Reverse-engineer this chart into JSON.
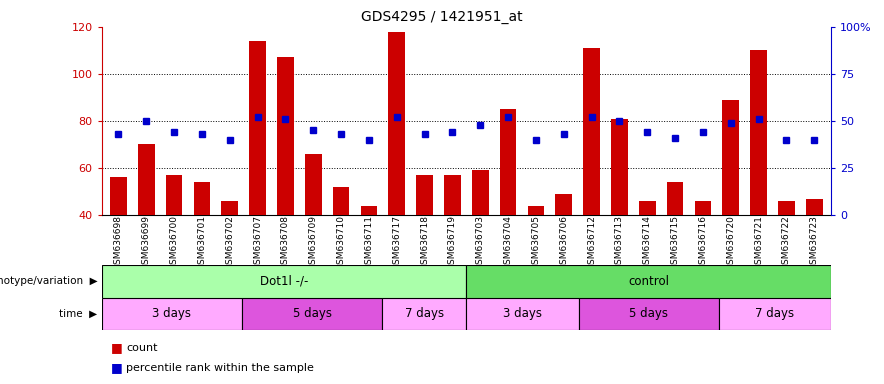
{
  "title": "GDS4295 / 1421951_at",
  "samples": [
    "GSM636698",
    "GSM636699",
    "GSM636700",
    "GSM636701",
    "GSM636702",
    "GSM636707",
    "GSM636708",
    "GSM636709",
    "GSM636710",
    "GSM636711",
    "GSM636717",
    "GSM636718",
    "GSM636719",
    "GSM636703",
    "GSM636704",
    "GSM636705",
    "GSM636706",
    "GSM636712",
    "GSM636713",
    "GSM636714",
    "GSM636715",
    "GSM636716",
    "GSM636720",
    "GSM636721",
    "GSM636722",
    "GSM636723"
  ],
  "counts": [
    56,
    70,
    57,
    54,
    46,
    114,
    107,
    66,
    52,
    44,
    118,
    57,
    57,
    59,
    85,
    44,
    49,
    111,
    81,
    46,
    54,
    46,
    89,
    110,
    46,
    47
  ],
  "percentiles": [
    43,
    50,
    44,
    43,
    40,
    52,
    51,
    45,
    43,
    40,
    52,
    43,
    44,
    48,
    52,
    40,
    43,
    52,
    50,
    44,
    41,
    44,
    49,
    51,
    40,
    40
  ],
  "ylim_left": [
    40,
    120
  ],
  "ylim_right": [
    0,
    100
  ],
  "yticks_left": [
    40,
    60,
    80,
    100,
    120
  ],
  "yticks_right": [
    0,
    25,
    50,
    75,
    100
  ],
  "ytick_labels_right": [
    "0",
    "25",
    "50",
    "75",
    "100%"
  ],
  "bar_color": "#cc0000",
  "dot_color": "#0000cc",
  "left_axis_color": "#cc0000",
  "right_axis_color": "#0000cc",
  "genotype_groups": [
    {
      "label": "Dot1l -/-",
      "start": 0,
      "end": 13,
      "color": "#aaffaa"
    },
    {
      "label": "control",
      "start": 13,
      "end": 26,
      "color": "#66dd66"
    }
  ],
  "time_groups": [
    {
      "label": "3 days",
      "start": 0,
      "end": 5,
      "color": "#ffaaff"
    },
    {
      "label": "5 days",
      "start": 5,
      "end": 10,
      "color": "#dd44dd"
    },
    {
      "label": "7 days",
      "start": 10,
      "end": 13,
      "color": "#ffaaff"
    },
    {
      "label": "3 days",
      "start": 13,
      "end": 17,
      "color": "#ffaaff"
    },
    {
      "label": "5 days",
      "start": 17,
      "end": 22,
      "color": "#dd44dd"
    },
    {
      "label": "7 days",
      "start": 22,
      "end": 26,
      "color": "#ffaaff"
    }
  ],
  "genotype_label": "genotype/variation",
  "time_label": "time",
  "legend_count_label": "count",
  "legend_pct_label": "percentile rank within the sample"
}
